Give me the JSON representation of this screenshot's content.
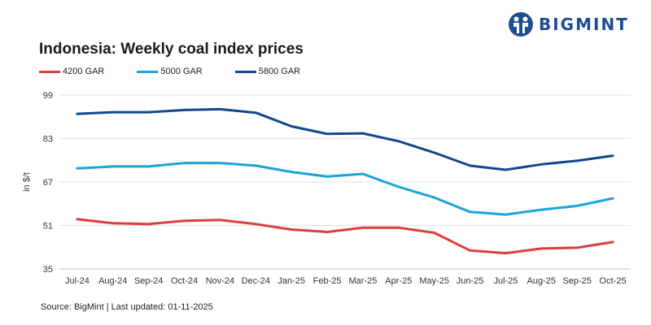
{
  "brand": {
    "name": "BIGMINT",
    "logo_color": "#1e4d8f"
  },
  "chart_data": {
    "type": "line",
    "title": "Indonesia: Weekly coal index prices",
    "ylabel": "in $/t",
    "xlabel": "",
    "categories": [
      "Jul-24",
      "Aug-24",
      "Sep-24",
      "Oct-24",
      "Nov-24",
      "Dec-24",
      "Jan-25",
      "Feb-25",
      "Mar-25",
      "Apr-25",
      "May-25",
      "Jun-25",
      "Jul-25",
      "Aug-25",
      "Sep-25",
      "Oct-25"
    ],
    "yticks": [
      "99",
      "83",
      "67",
      "51",
      "35"
    ],
    "ylim": [
      35,
      99
    ],
    "grid": true,
    "legend_position": "top-left",
    "series": [
      {
        "name": "4200 GAR",
        "color": "#e03c3c",
        "values": [
          53.3,
          51.8,
          51.5,
          52.7,
          53.0,
          51.5,
          49.5,
          48.6,
          50.2,
          50.2,
          48.3,
          41.8,
          40.8,
          42.5,
          42.8,
          44.9
        ]
      },
      {
        "name": "5000 GAR",
        "color": "#1aa3dc",
        "values": [
          72.0,
          72.7,
          72.7,
          74.0,
          74.0,
          73.0,
          70.7,
          69.0,
          70.0,
          65.2,
          61.3,
          56.0,
          55.0,
          56.8,
          58.2,
          61.0
        ]
      },
      {
        "name": "5800 GAR",
        "color": "#14468c",
        "values": [
          92.1,
          92.7,
          92.7,
          93.5,
          93.8,
          92.5,
          87.5,
          84.7,
          84.9,
          82.0,
          77.8,
          73.0,
          71.5,
          73.5,
          74.8,
          76.7
        ]
      }
    ]
  },
  "source": "Source: BigMint | Last updated: 01-11-2025"
}
